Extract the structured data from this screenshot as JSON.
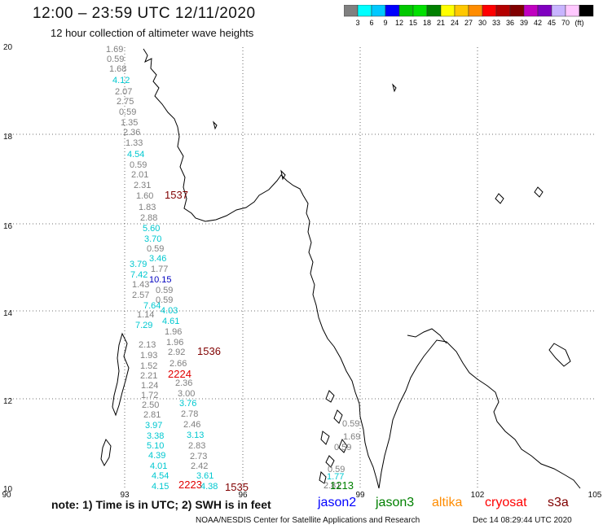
{
  "header": {
    "title": "12:00 – 23:59 UTC 12/11/2020",
    "subtitle": "12 hour collection of altimeter wave heights"
  },
  "legend": {
    "colors": [
      "#808080",
      "#00ffff",
      "#00c8ff",
      "#0000ff",
      "#00c800",
      "#00e000",
      "#008000",
      "#ffff00",
      "#ffc800",
      "#ff8c00",
      "#ff0000",
      "#b40000",
      "#800000",
      "#c000c0",
      "#8000c0",
      "#c8b4ff",
      "#ffc8ff",
      "#000000"
    ],
    "labels": [
      "3",
      "6",
      "9",
      "12",
      "15",
      "18",
      "21",
      "24",
      "27",
      "30",
      "33",
      "36",
      "39",
      "42",
      "45",
      "70",
      "(ft)"
    ]
  },
  "axes": {
    "lon_labels": [
      "90",
      "93",
      "96",
      "99",
      "102",
      "105"
    ],
    "lat_labels": [
      "20",
      "18",
      "16",
      "14",
      "12",
      "10"
    ]
  },
  "readings": [
    {
      "text": "1.69",
      "color": "#808080"
    },
    {
      "text": "0.59",
      "color": "#808080"
    },
    {
      "text": "1.68",
      "color": "#808080"
    },
    {
      "text": "4.12",
      "color": "#00c8d0"
    },
    {
      "text": "2.07",
      "color": "#808080"
    },
    {
      "text": "2.75",
      "color": "#808080"
    },
    {
      "text": "0.59",
      "color": "#808080"
    },
    {
      "text": "1.35",
      "color": "#808080"
    },
    {
      "text": "2.36",
      "color": "#808080"
    },
    {
      "text": "1.33",
      "color": "#808080"
    },
    {
      "text": "4.54",
      "color": "#00c8d0"
    },
    {
      "text": "0.59",
      "color": "#808080"
    },
    {
      "text": "2.01",
      "color": "#808080"
    },
    {
      "text": "2.31",
      "color": "#808080"
    },
    {
      "text": "1.60",
      "color": "#808080"
    },
    {
      "text": "1537",
      "color": "#800000"
    },
    {
      "text": "1.83",
      "color": "#808080"
    },
    {
      "text": "2.88",
      "color": "#808080"
    },
    {
      "text": "5.60",
      "color": "#00c8d0"
    },
    {
      "text": "3.70",
      "color": "#00c8d0"
    },
    {
      "text": "0.59",
      "color": "#808080"
    },
    {
      "text": "3.46",
      "color": "#00c8d0"
    },
    {
      "text": "3.79",
      "color": "#00c8d0"
    },
    {
      "text": "1.77",
      "color": "#808080"
    },
    {
      "text": "7.42",
      "color": "#00c8d0"
    },
    {
      "text": "10.15",
      "color": "#0000c0"
    },
    {
      "text": "1.43",
      "color": "#808080"
    },
    {
      "text": "2.57",
      "color": "#808080"
    },
    {
      "text": "0.59",
      "color": "#808080"
    },
    {
      "text": "0.59",
      "color": "#808080"
    },
    {
      "text": "7.64",
      "color": "#00c8d0"
    },
    {
      "text": "4.03",
      "color": "#00c8d0"
    },
    {
      "text": "1.14",
      "color": "#808080"
    },
    {
      "text": "4.61",
      "color": "#00c8d0"
    },
    {
      "text": "7.29",
      "color": "#00c8d0"
    },
    {
      "text": "1.96",
      "color": "#808080"
    },
    {
      "text": "1.96",
      "color": "#808080"
    },
    {
      "text": "2.13",
      "color": "#808080"
    },
    {
      "text": "2.92",
      "color": "#808080"
    },
    {
      "text": "1536",
      "color": "#800000"
    },
    {
      "text": "1.93",
      "color": "#808080"
    },
    {
      "text": "2.66",
      "color": "#808080"
    },
    {
      "text": "1.52",
      "color": "#808080"
    },
    {
      "text": "2.21",
      "color": "#808080"
    },
    {
      "text": "2224",
      "color": "#e00000"
    },
    {
      "text": "2.36",
      "color": "#808080"
    },
    {
      "text": "1.24",
      "color": "#808080"
    },
    {
      "text": "1.72",
      "color": "#808080"
    },
    {
      "text": "3.00",
      "color": "#808080"
    },
    {
      "text": "2.50",
      "color": "#808080"
    },
    {
      "text": "3.76",
      "color": "#00c8d0"
    },
    {
      "text": "2.81",
      "color": "#808080"
    },
    {
      "text": "2.78",
      "color": "#808080"
    },
    {
      "text": "3.97",
      "color": "#00c8d0"
    },
    {
      "text": "2.46",
      "color": "#808080"
    },
    {
      "text": "3.38",
      "color": "#00c8d0"
    },
    {
      "text": "3.13",
      "color": "#00c8d0"
    },
    {
      "text": "5.10",
      "color": "#00c8d0"
    },
    {
      "text": "2.83",
      "color": "#808080"
    },
    {
      "text": "4.39",
      "color": "#00c8d0"
    },
    {
      "text": "2.73",
      "color": "#808080"
    },
    {
      "text": "4.01",
      "color": "#00c8d0"
    },
    {
      "text": "2.42",
      "color": "#808080"
    },
    {
      "text": "4.54",
      "color": "#00c8d0"
    },
    {
      "text": "3.61",
      "color": "#00c8d0"
    },
    {
      "text": "4.15",
      "color": "#00c8d0"
    },
    {
      "text": "2223",
      "color": "#e00000"
    },
    {
      "text": "4.38",
      "color": "#00c8d0"
    },
    {
      "text": "1535",
      "color": "#800000"
    },
    {
      "text": "0.59",
      "color": "#808080"
    },
    {
      "text": "1.69",
      "color": "#808080"
    },
    {
      "text": "0.59",
      "color": "#808080"
    },
    {
      "text": "0.59",
      "color": "#808080"
    },
    {
      "text": "1.77",
      "color": "#00c8d0"
    },
    {
      "text": "2.81",
      "color": "#808080"
    },
    {
      "text": "1213",
      "color": "#008000"
    }
  ],
  "footer": {
    "note": "note: 1) Time is in UTC; 2) SWH is in feet",
    "satellites": [
      {
        "name": "jason2",
        "color": "#0000ff"
      },
      {
        "name": "jason3",
        "color": "#008000"
      },
      {
        "name": "altika",
        "color": "#ff8c00"
      },
      {
        "name": "cryosat",
        "color": "#ff0000"
      },
      {
        "name": "s3a",
        "color": "#800000"
      }
    ],
    "credit": "NOAA/NESDIS Center for Satellite Applications and Research",
    "timestamp": "Dec 14 08:29:44 UTC 2020"
  }
}
